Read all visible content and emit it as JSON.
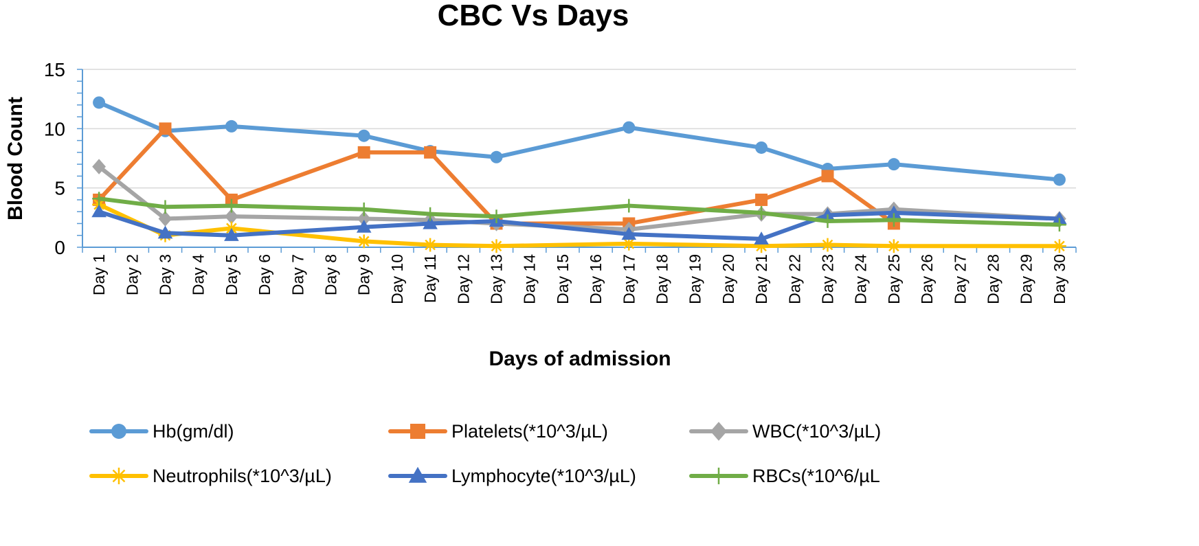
{
  "chart_data": {
    "type": "line",
    "title": "CBC Vs Days",
    "xlabel": "Days of admission",
    "ylabel": "Blood Count",
    "ylim": [
      0,
      15
    ],
    "yticks": [
      0,
      5,
      10,
      15
    ],
    "grid": true,
    "legend_position": "bottom",
    "categories": [
      "Day 1",
      "Day 2",
      "Day 3",
      "Day 4",
      "Day 5",
      "Day 6",
      "Day 7",
      "Day 8",
      "Day 9",
      "Day 10",
      "Day 11",
      "Day 12",
      "Day 13",
      "Day 14",
      "Day 15",
      "Day 16",
      "Day 17",
      "Day 18",
      "Day 19",
      "Day 20",
      "Day 21",
      "Day 22",
      "Day 23",
      "Day 24",
      "Day 25",
      "Day 26",
      "Day 27",
      "Day 28",
      "Day 29",
      "Day 30"
    ],
    "series": [
      {
        "name": "Hb(gm/dl)",
        "color": "#5B9BD5",
        "marker": "circle",
        "points": [
          [
            "Day 1",
            12.2
          ],
          [
            "Day 3",
            9.8
          ],
          [
            "Day 5",
            10.2
          ],
          [
            "Day 9",
            9.4
          ],
          [
            "Day 11",
            8.1
          ],
          [
            "Day 13",
            7.6
          ],
          [
            "Day 17",
            10.1
          ],
          [
            "Day 21",
            8.4
          ],
          [
            "Day 23",
            6.6
          ],
          [
            "Day 25",
            7.0
          ],
          [
            "Day 30",
            5.7
          ]
        ]
      },
      {
        "name": "Platelets(*10^3/µL)",
        "color": "#ED7D31",
        "marker": "square",
        "points": [
          [
            "Day 1",
            4.0
          ],
          [
            "Day 3",
            10.0
          ],
          [
            "Day 5",
            4.0
          ],
          [
            "Day 9",
            8.0
          ],
          [
            "Day 11",
            8.0
          ],
          [
            "Day 13",
            2.0
          ],
          [
            "Day 17",
            2.0
          ],
          [
            "Day 21",
            4.0
          ],
          [
            "Day 23",
            6.0
          ],
          [
            "Day 25",
            2.0
          ]
        ]
      },
      {
        "name": "WBC(*10^3/µL)",
        "color": "#A5A5A5",
        "marker": "diamond",
        "points": [
          [
            "Day 1",
            6.8
          ],
          [
            "Day 3",
            2.4
          ],
          [
            "Day 5",
            2.6
          ],
          [
            "Day 9",
            2.4
          ],
          [
            "Day 11",
            2.3
          ],
          [
            "Day 13",
            2.0
          ],
          [
            "Day 17",
            1.5
          ],
          [
            "Day 21",
            2.8
          ],
          [
            "Day 23",
            2.8
          ],
          [
            "Day 25",
            3.2
          ],
          [
            "Day 30",
            2.4
          ]
        ]
      },
      {
        "name": "Neutrophils(*10^3/µL)",
        "color": "#FFC000",
        "marker": "star",
        "points": [
          [
            "Day 1",
            3.6
          ],
          [
            "Day 3",
            1.0
          ],
          [
            "Day 5",
            1.6
          ],
          [
            "Day 9",
            0.5
          ],
          [
            "Day 11",
            0.2
          ],
          [
            "Day 13",
            0.1
          ],
          [
            "Day 17",
            0.3
          ],
          [
            "Day 21",
            0.1
          ],
          [
            "Day 23",
            0.2
          ],
          [
            "Day 25",
            0.1
          ],
          [
            "Day 30",
            0.1
          ]
        ]
      },
      {
        "name": "Lymphocyte(*10^3/µL)",
        "color": "#4472C4",
        "marker": "triangle",
        "points": [
          [
            "Day 1",
            3.0
          ],
          [
            "Day 3",
            1.2
          ],
          [
            "Day 5",
            1.0
          ],
          [
            "Day 9",
            1.7
          ],
          [
            "Day 11",
            2.0
          ],
          [
            "Day 13",
            2.2
          ],
          [
            "Day 17",
            1.1
          ],
          [
            "Day 21",
            0.7
          ],
          [
            "Day 23",
            2.7
          ],
          [
            "Day 25",
            2.9
          ],
          [
            "Day 30",
            2.4
          ]
        ]
      },
      {
        "name": "RBCs(*10^6/µL",
        "color": "#70AD47",
        "marker": "plus",
        "points": [
          [
            "Day 1",
            4.1
          ],
          [
            "Day 3",
            3.4
          ],
          [
            "Day 5",
            3.5
          ],
          [
            "Day 9",
            3.2
          ],
          [
            "Day 11",
            2.8
          ],
          [
            "Day 13",
            2.6
          ],
          [
            "Day 17",
            3.5
          ],
          [
            "Day 21",
            2.9
          ],
          [
            "Day 23",
            2.2
          ],
          [
            "Day 25",
            2.3
          ],
          [
            "Day 30",
            1.9
          ]
        ]
      }
    ]
  }
}
